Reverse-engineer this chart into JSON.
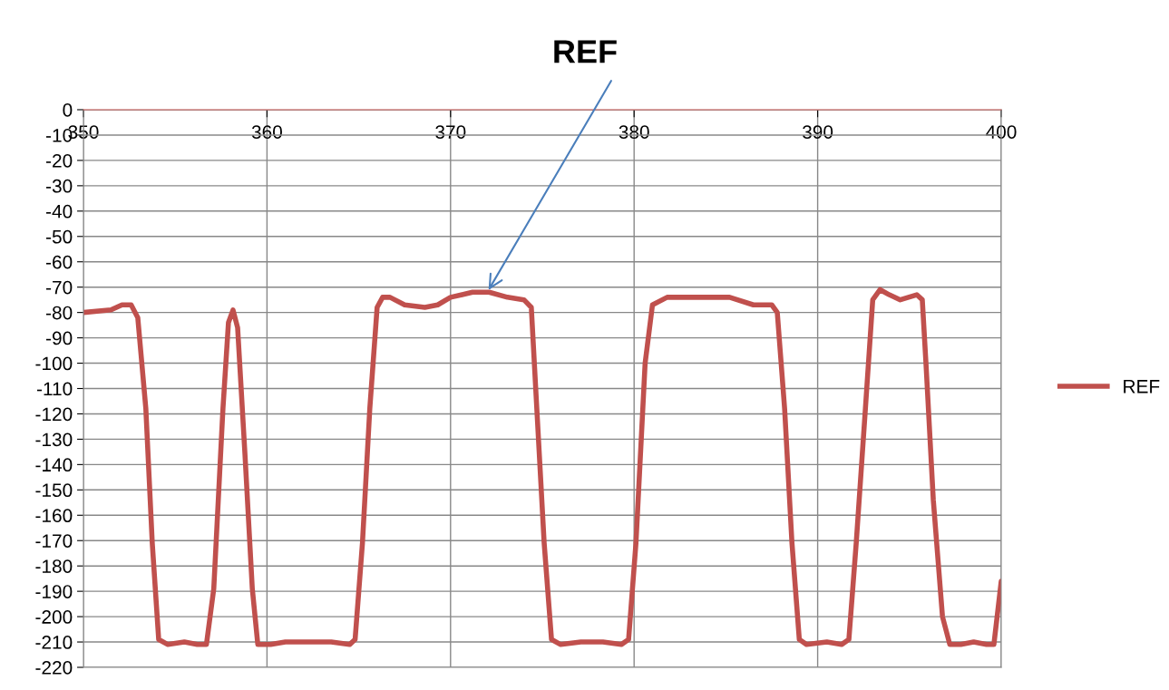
{
  "chart_data": {
    "type": "line",
    "x": [
      350,
      351.5,
      352.1,
      352.6,
      352.96,
      353.4,
      353.75,
      354.1,
      354.6,
      355.5,
      356.2,
      356.7,
      357.1,
      357.6,
      357.9,
      358.15,
      358.4,
      358.8,
      359.2,
      359.5,
      360.2,
      361.0,
      363.5,
      364.5,
      364.8,
      365.2,
      365.6,
      366.0,
      366.3,
      366.7,
      367.5,
      368.6,
      369.3,
      370.0,
      371.2,
      372.1,
      373.1,
      374.0,
      374.4,
      374.7,
      375.1,
      375.5,
      376.0,
      377.1,
      378.3,
      379.3,
      379.7,
      380.1,
      380.6,
      381.0,
      381.8,
      382.8,
      384.0,
      385.2,
      386.5,
      387.5,
      387.8,
      388.2,
      388.6,
      389.0,
      389.4,
      390.5,
      391.3,
      391.7,
      392.1,
      392.6,
      393.0,
      393.4,
      393.9,
      394.5,
      395.4,
      395.7,
      395.9,
      396.3,
      396.8,
      397.2,
      397.8,
      398.5,
      399.2,
      399.6,
      400
    ],
    "series": [
      {
        "name": "REF",
        "color": "#c0504d",
        "values": [
          -80,
          -79,
          -77,
          -77,
          -82,
          -118,
          -171,
          -209,
          -211,
          -210,
          -211,
          -211,
          -189,
          -118,
          -84,
          -79,
          -86,
          -136,
          -189,
          -211,
          -211,
          -210,
          -210,
          -211,
          -209,
          -171,
          -118,
          -78,
          -74,
          -74,
          -77,
          -78,
          -77,
          -74,
          -72,
          -72,
          -74,
          -75,
          -78,
          -118,
          -171,
          -209,
          -211,
          -210,
          -210,
          -211,
          -209,
          -171,
          -100,
          -77,
          -74,
          -74,
          -74,
          -74,
          -77,
          -77,
          -80,
          -118,
          -171,
          -209,
          -211,
          -210,
          -211,
          -209,
          -171,
          -118,
          -75,
          -71,
          -73,
          -75,
          -73,
          -75,
          -100,
          -154,
          -200,
          -211,
          -211,
          -210,
          -211,
          -211,
          -186
        ]
      }
    ],
    "xlim": [
      350,
      400
    ],
    "xticks": [
      350,
      360,
      370,
      380,
      390,
      400
    ],
    "ylim": [
      -220,
      0
    ],
    "yticks": [
      0,
      -10,
      -20,
      -30,
      -40,
      -50,
      -60,
      -70,
      -80,
      -90,
      -100,
      -110,
      -120,
      -130,
      -140,
      -150,
      -160,
      -170,
      -180,
      -190,
      -200,
      -210,
      -220
    ],
    "grid": true,
    "legend": "right",
    "marker": "none",
    "line_style": "solid",
    "annotations": [
      {
        "text": "REF",
        "x": 372,
        "y": -72
      }
    ]
  }
}
